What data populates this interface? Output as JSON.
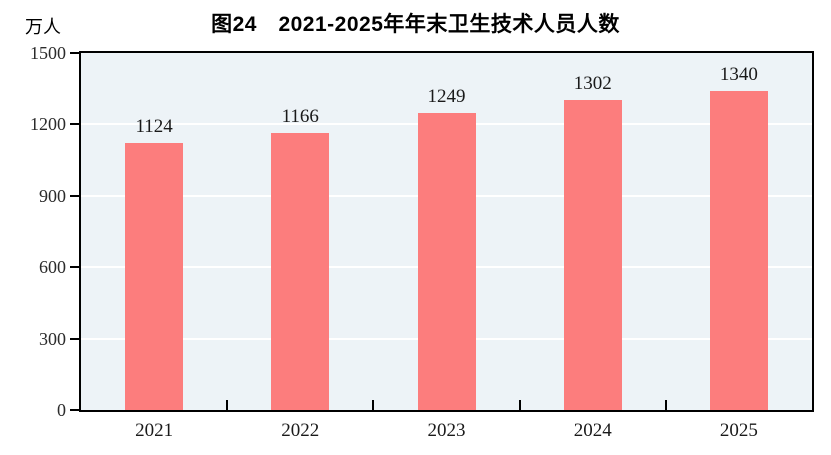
{
  "figure": {
    "title": "图24　2021-2025年年末卫生技术人员人数",
    "unit_label": "万人"
  },
  "chart_data": {
    "type": "bar",
    "title": "图24　2021-2025年年末卫生技术人员人数",
    "unit": "万人",
    "categories": [
      "2021",
      "2022",
      "2023",
      "2024",
      "2025"
    ],
    "values": [
      1124,
      1166,
      1249,
      1302,
      1340
    ],
    "xlabel": "",
    "ylabel": "万人",
    "ylim": [
      0,
      1500
    ],
    "yticks": [
      0,
      300,
      600,
      900,
      1200,
      1500
    ],
    "grid": true,
    "gridline_color": "#ffffff",
    "data_labels": true,
    "legend": "none",
    "bar_color": "#FC7D7D",
    "plot_background": "#EDF3F7",
    "axis_color": "#000000",
    "label_color": "#1a1a1a"
  }
}
